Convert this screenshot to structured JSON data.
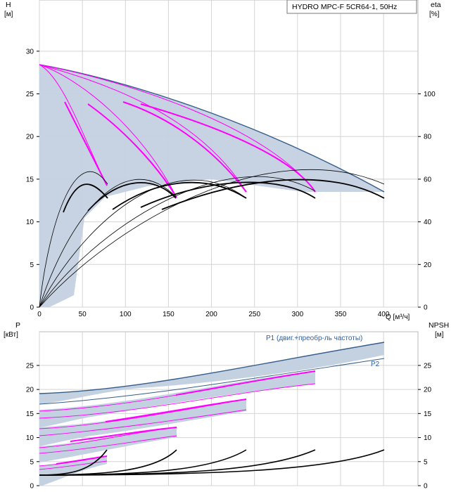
{
  "chart_data": [
    {
      "type": "line",
      "title": "HYDRO MPC-F 5CR64-1, 50Hz",
      "xlabel": "Q [м³/ч]",
      "ylabel_left": "H",
      "ylabel_left_unit": "[м]",
      "ylabel_right": "eta",
      "ylabel_right_unit": "[%]",
      "xlim": [
        0,
        440
      ],
      "ylim_left": [
        0,
        36
      ],
      "ylim_right": [
        0,
        144
      ],
      "x_ticks": [
        "0",
        "50",
        "100",
        "150",
        "200",
        "250",
        "300",
        "350",
        "400"
      ],
      "y_left_ticks": [
        "0",
        "5",
        "10",
        "15",
        "20",
        "25",
        "30"
      ],
      "y_right_ticks": [
        "0",
        "20",
        "40",
        "60",
        "80",
        "100"
      ],
      "grid": true,
      "series": [
        {
          "group": "head_1_pump",
          "x": [
            0,
            20,
            40,
            60,
            80,
            86
          ],
          "y": [
            31.5,
            29.0,
            25.0,
            20.0,
            15.5,
            16.0
          ]
        },
        {
          "group": "head_2_pumps",
          "x": [
            0,
            40,
            80,
            120,
            160,
            172
          ],
          "y": [
            31.5,
            29.0,
            25.0,
            20.0,
            15.5,
            14.5
          ]
        },
        {
          "group": "head_3_pumps",
          "x": [
            0,
            60,
            120,
            180,
            240,
            258
          ],
          "y": [
            31.5,
            29.0,
            25.0,
            20.0,
            16.0,
            15.0
          ]
        },
        {
          "group": "head_4_pumps",
          "x": [
            0,
            80,
            160,
            240,
            320,
            344
          ],
          "y": [
            31.5,
            29.0,
            25.0,
            20.0,
            16.0,
            15.0
          ]
        },
        {
          "group": "head_5_pumps_max",
          "x": [
            0,
            100,
            200,
            300,
            400,
            430
          ],
          "y": [
            31.5,
            29.0,
            25.0,
            21.0,
            16.5,
            15.0
          ]
        },
        {
          "group": "eta_1_pump",
          "x": [
            0,
            20,
            40,
            65,
            86
          ],
          "y": [
            0,
            32,
            52,
            64,
            56
          ]
        },
        {
          "group": "eta_2_pumps",
          "x": [
            0,
            40,
            80,
            130,
            172
          ],
          "y": [
            0,
            32,
            52,
            64,
            56
          ]
        },
        {
          "group": "eta_3_pumps",
          "x": [
            0,
            60,
            120,
            195,
            258
          ],
          "y": [
            0,
            32,
            52,
            65,
            57
          ]
        },
        {
          "group": "eta_4_pumps",
          "x": [
            0,
            80,
            160,
            260,
            344
          ],
          "y": [
            0,
            32,
            52,
            65,
            57
          ]
        },
        {
          "group": "eta_5_pumps",
          "x": [
            0,
            100,
            200,
            325,
            430
          ],
          "y": [
            0,
            32,
            52,
            65,
            57
          ]
        }
      ]
    },
    {
      "type": "line",
      "ylabel_left": "P",
      "ylabel_left_unit": "[кВт]",
      "ylabel_right": "NPSH",
      "ylabel_right_unit": "[м]",
      "xlim": [
        0,
        440
      ],
      "ylim_left": [
        0,
        32
      ],
      "ylim_right": [
        0,
        32
      ],
      "y_left_ticks": [
        "0",
        "5",
        "10",
        "15",
        "20",
        "25"
      ],
      "y_right_ticks": [
        "0",
        "5",
        "10",
        "15",
        "20",
        "25"
      ],
      "grid": true,
      "annotations": [
        "P1 (двиг.+преобр-ль частоты)",
        "P2"
      ],
      "series": [
        {
          "group": "P1_max",
          "x": [
            0,
            100,
            200,
            300,
            430
          ],
          "y": [
            19.8,
            20.5,
            23.0,
            27.0,
            30.8
          ]
        },
        {
          "group": "P2_max",
          "x": [
            0,
            100,
            200,
            300,
            430
          ],
          "y": [
            17.5,
            18.2,
            20.5,
            24.0,
            27.5
          ]
        },
        {
          "group": "P1_4_pumps",
          "x": [
            0,
            80,
            160,
            240,
            344
          ],
          "y": [
            15.8,
            16.5,
            18.5,
            21.5,
            24.5
          ]
        },
        {
          "group": "P2_4_pumps",
          "x": [
            0,
            80,
            160,
            240,
            344
          ],
          "y": [
            14.0,
            14.8,
            16.5,
            19.2,
            22.0
          ]
        },
        {
          "group": "P1_3_pumps",
          "x": [
            0,
            60,
            120,
            180,
            258
          ],
          "y": [
            12.0,
            12.6,
            14.3,
            16.5,
            18.6
          ]
        },
        {
          "group": "P2_3_pumps",
          "x": [
            0,
            60,
            120,
            180,
            258
          ],
          "y": [
            10.7,
            11.3,
            12.6,
            14.6,
            16.5
          ]
        },
        {
          "group": "P1_2_pumps",
          "x": [
            0,
            40,
            80,
            120,
            172
          ],
          "y": [
            8.0,
            8.4,
            9.6,
            11.0,
            12.3
          ]
        },
        {
          "group": "P2_2_pumps",
          "x": [
            0,
            40,
            80,
            120,
            172
          ],
          "y": [
            7.1,
            7.5,
            8.4,
            9.7,
            11.0
          ]
        },
        {
          "group": "P1_1_pump",
          "x": [
            0,
            20,
            40,
            60,
            86
          ],
          "y": [
            4.0,
            4.2,
            4.8,
            5.5,
            6.2
          ]
        },
        {
          "group": "P2_1_pump",
          "x": [
            0,
            20,
            40,
            60,
            86
          ],
          "y": [
            3.5,
            3.7,
            4.2,
            4.9,
            5.5
          ]
        },
        {
          "group": "NPSH_1",
          "x": [
            0,
            40,
            60,
            75,
            86
          ],
          "y": [
            2.0,
            2.4,
            3.3,
            4.8,
            7.5
          ]
        },
        {
          "group": "NPSH_2",
          "x": [
            0,
            80,
            120,
            150,
            172
          ],
          "y": [
            2.0,
            2.4,
            3.3,
            4.8,
            7.5
          ]
        },
        {
          "group": "NPSH_3",
          "x": [
            0,
            120,
            180,
            225,
            258
          ],
          "y": [
            2.0,
            2.4,
            3.3,
            4.8,
            7.5
          ]
        },
        {
          "group": "NPSH_4",
          "x": [
            0,
            160,
            240,
            300,
            344
          ],
          "y": [
            2.0,
            2.4,
            3.3,
            4.8,
            7.5
          ]
        },
        {
          "group": "NPSH_5",
          "x": [
            0,
            200,
            300,
            375,
            430
          ],
          "y": [
            2.0,
            2.4,
            3.3,
            4.8,
            7.5
          ]
        }
      ]
    }
  ],
  "colors": {
    "envelope_fill": "#c4d1e0",
    "envelope_line": "#355d8a",
    "magenta": "#ff00ff",
    "black": "#000000",
    "grid": "#d4d4d4",
    "label_blue": "#2f5fa0"
  }
}
